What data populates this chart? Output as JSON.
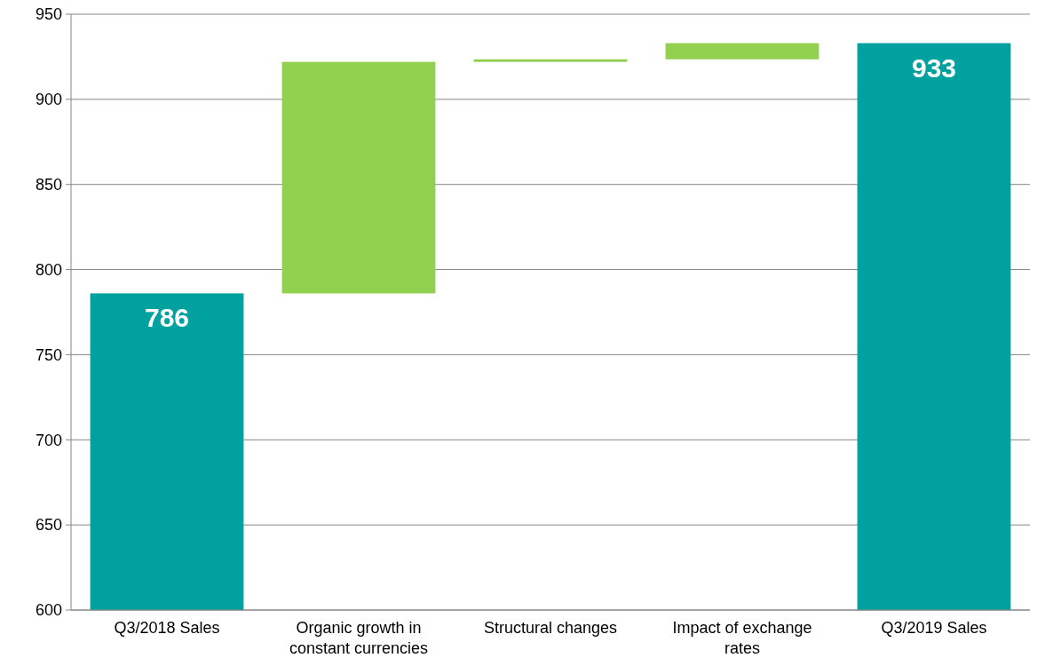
{
  "chart_data": {
    "type": "bar",
    "categories": [
      "Q3/2018 Sales",
      "Organic growth in constant currencies",
      "Structural changes",
      "Impact of exchange rates",
      "Q3/2019 Sales"
    ],
    "values": [
      786,
      136,
      1.5,
      9.5,
      933
    ],
    "base": [
      null,
      786,
      922,
      923.5,
      null
    ],
    "colors": [
      "#00a19f",
      "#92d050",
      "#92d050",
      "#92d050",
      "#00a19f"
    ],
    "value_labels": [
      "786",
      null,
      null,
      null,
      "933"
    ],
    "ylim": [
      600,
      950
    ],
    "yticks": [
      600,
      650,
      700,
      750,
      800,
      850,
      900,
      950
    ],
    "grid": "y"
  }
}
